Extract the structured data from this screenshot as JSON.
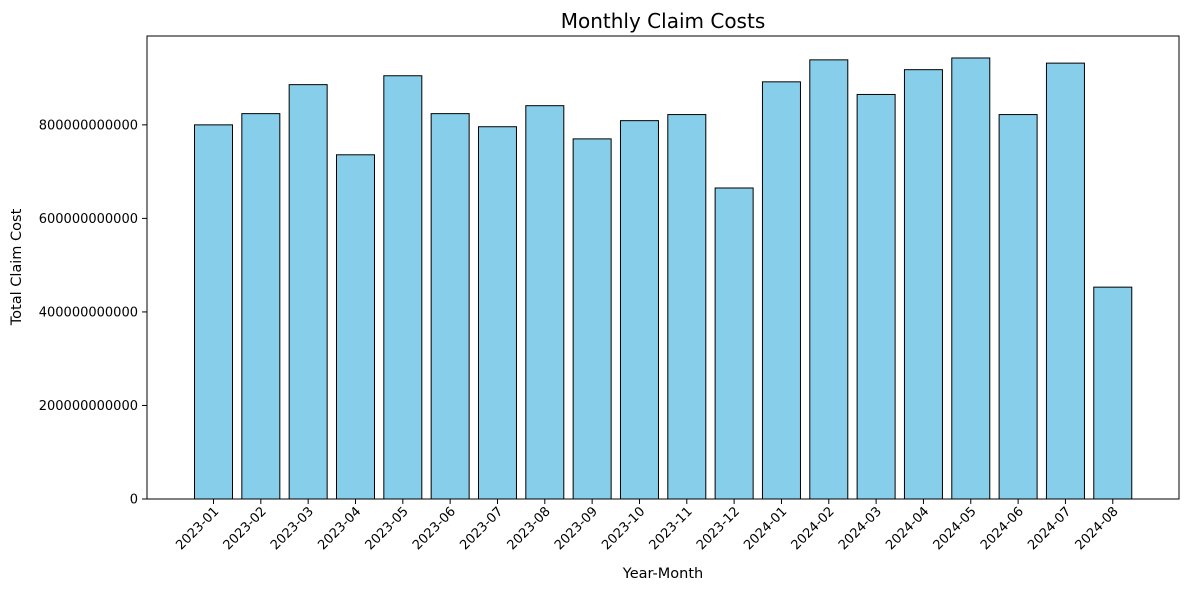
{
  "chart_data": {
    "type": "bar",
    "title": "Monthly Claim Costs",
    "xlabel": "Year-Month",
    "ylabel": "Total Claim Cost",
    "categories": [
      "2023-01",
      "2023-02",
      "2023-03",
      "2023-04",
      "2023-05",
      "2023-06",
      "2023-07",
      "2023-08",
      "2023-09",
      "2023-10",
      "2023-11",
      "2023-12",
      "2024-01",
      "2024-02",
      "2024-03",
      "2024-04",
      "2024-05",
      "2024-06",
      "2024-07",
      "2024-08"
    ],
    "values": [
      800000000000,
      824000000000,
      886000000000,
      736000000000,
      905000000000,
      824000000000,
      796000000000,
      841000000000,
      770000000000,
      809000000000,
      822000000000,
      665000000000,
      892000000000,
      939000000000,
      865000000000,
      918000000000,
      943000000000,
      822000000000,
      932000000000,
      453000000000
    ],
    "yticks": [
      0,
      200000000000,
      400000000000,
      600000000000,
      800000000000
    ],
    "ytick_labels": [
      "0",
      "200000000000",
      "400000000000",
      "600000000000",
      "800000000000"
    ],
    "ylim": [
      0,
      990000000000
    ],
    "grid": false,
    "bar_color": "#87ceeb",
    "edge_color": "#000000"
  }
}
